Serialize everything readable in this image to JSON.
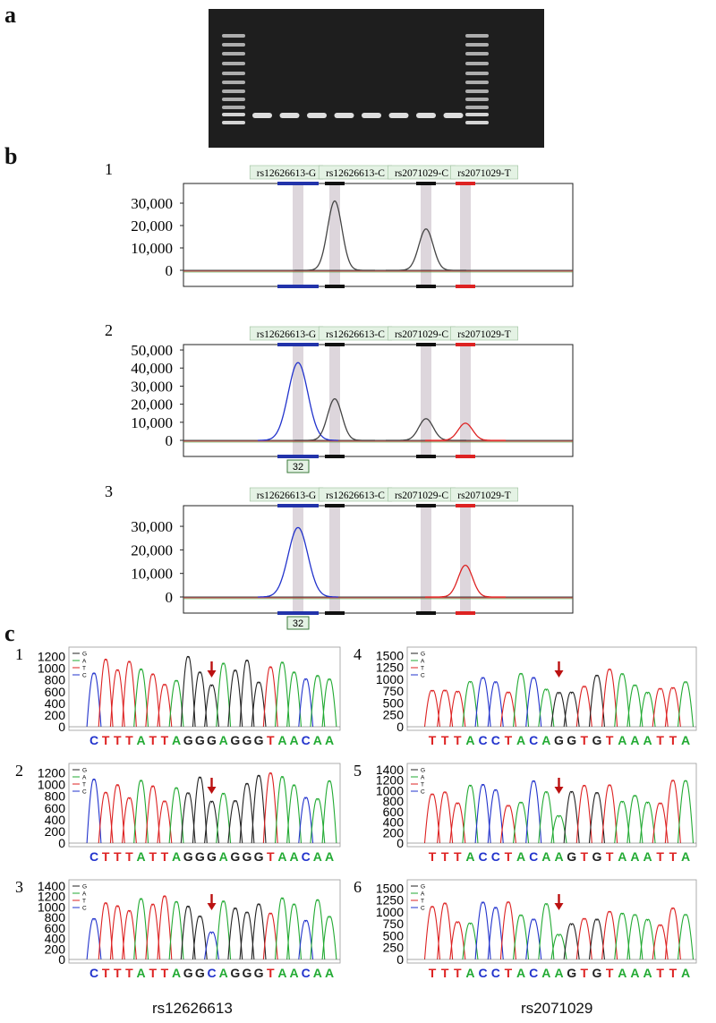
{
  "panels": {
    "a": "a",
    "b": "b",
    "c": "c"
  },
  "gel": {
    "lanes": 8,
    "ladder_bands": 11
  },
  "massarray": [
    {
      "id": "1",
      "labels": [
        "rs12626613-G",
        "rs12626613-C",
        "rs2071029-C",
        "rs2071029-T"
      ],
      "yticks": [
        "30,000",
        "20,000",
        "10,000",
        "0"
      ],
      "ytick_values": [
        30000,
        20000,
        10000,
        0
      ],
      "ymax": 38000,
      "peaks": [
        {
          "allele": "rs12626613-C",
          "color": "#444444",
          "height": 31000
        },
        {
          "allele": "rs2071029-C",
          "color": "#444444",
          "height": 18500
        }
      ],
      "marker": null
    },
    {
      "id": "2",
      "labels": [
        "rs12626613-G",
        "rs12626613-C",
        "rs2071029-C",
        "rs2071029-T"
      ],
      "yticks": [
        "50,000",
        "40,000",
        "30,000",
        "20,000",
        "10,000",
        "0"
      ],
      "ytick_values": [
        50000,
        40000,
        30000,
        20000,
        10000,
        0
      ],
      "ymax": 52000,
      "peaks": [
        {
          "allele": "rs12626613-G",
          "color": "#2233cc",
          "height": 43000
        },
        {
          "allele": "rs12626613-C",
          "color": "#444444",
          "height": 23000
        },
        {
          "allele": "rs2071029-C",
          "color": "#444444",
          "height": 12000
        },
        {
          "allele": "rs2071029-T",
          "color": "#dd2222",
          "height": 9500
        }
      ],
      "marker": "32"
    },
    {
      "id": "3",
      "labels": [
        "rs12626613-G",
        "rs12626613-C",
        "rs2071029-C",
        "rs2071029-T"
      ],
      "yticks": [
        "30,000",
        "20,000",
        "10,000",
        "0"
      ],
      "ytick_values": [
        30000,
        20000,
        10000,
        0
      ],
      "ymax": 38000,
      "peaks": [
        {
          "allele": "rs12626613-G",
          "color": "#2233cc",
          "height": 29500
        },
        {
          "allele": "rs2071029-T",
          "color": "#dd2222",
          "height": 13500
        }
      ],
      "marker": "32"
    }
  ],
  "chromatograms": [
    {
      "id": "1",
      "yticks": [
        "1200",
        "1000",
        "800",
        "600",
        "400",
        "200",
        "0"
      ],
      "ymax": 1300,
      "legend": [
        "G",
        "A",
        "T",
        "C"
      ],
      "bases": "CTTTATTAGGGAGGGTAACAA",
      "arrow_index": 10
    },
    {
      "id": "4",
      "yticks": [
        "1500",
        "1250",
        "1000",
        "750",
        "500",
        "250",
        "0"
      ],
      "ymax": 1600,
      "legend": [
        "G",
        "A",
        "T",
        "C"
      ],
      "bases": "TTTACCTACAGGTGTAAATTA",
      "arrow_index": 10
    },
    {
      "id": "2",
      "yticks": [
        "1200",
        "1000",
        "800",
        "600",
        "400",
        "200",
        "0"
      ],
      "ymax": 1300,
      "legend": [
        "G",
        "A",
        "T",
        "C"
      ],
      "bases": "CTTTATTAGGGAGGGTAACAA",
      "arrow_index": 10
    },
    {
      "id": "5",
      "yticks": [
        "1400",
        "1200",
        "1000",
        "800",
        "600",
        "400",
        "200",
        "0"
      ],
      "ymax": 1450,
      "legend": [
        "G",
        "A",
        "T",
        "C"
      ],
      "bases": "TTTACCTACAAGTGTAAATTA",
      "arrow_index": 10
    },
    {
      "id": "3",
      "yticks": [
        "1400",
        "1200",
        "1000",
        "800",
        "600",
        "400",
        "200",
        "0"
      ],
      "ymax": 1450,
      "legend": [
        "G",
        "A",
        "T",
        "C"
      ],
      "bases": "CTTTATTAGGCAGGGTAACAA",
      "arrow_index": 10
    },
    {
      "id": "6",
      "yticks": [
        "1500",
        "1250",
        "1000",
        "750",
        "500",
        "250",
        "0"
      ],
      "ymax": 1600,
      "legend": [
        "G",
        "A",
        "T",
        "C"
      ],
      "bases": "TTTACCTACAAGTGTAAATTA",
      "arrow_index": 10
    }
  ],
  "captions": {
    "left": "rs12626613",
    "right": "rs2071029"
  },
  "colors": {
    "G": "#222222",
    "A": "#22aa33",
    "T": "#dd2222",
    "C": "#2233cc"
  }
}
